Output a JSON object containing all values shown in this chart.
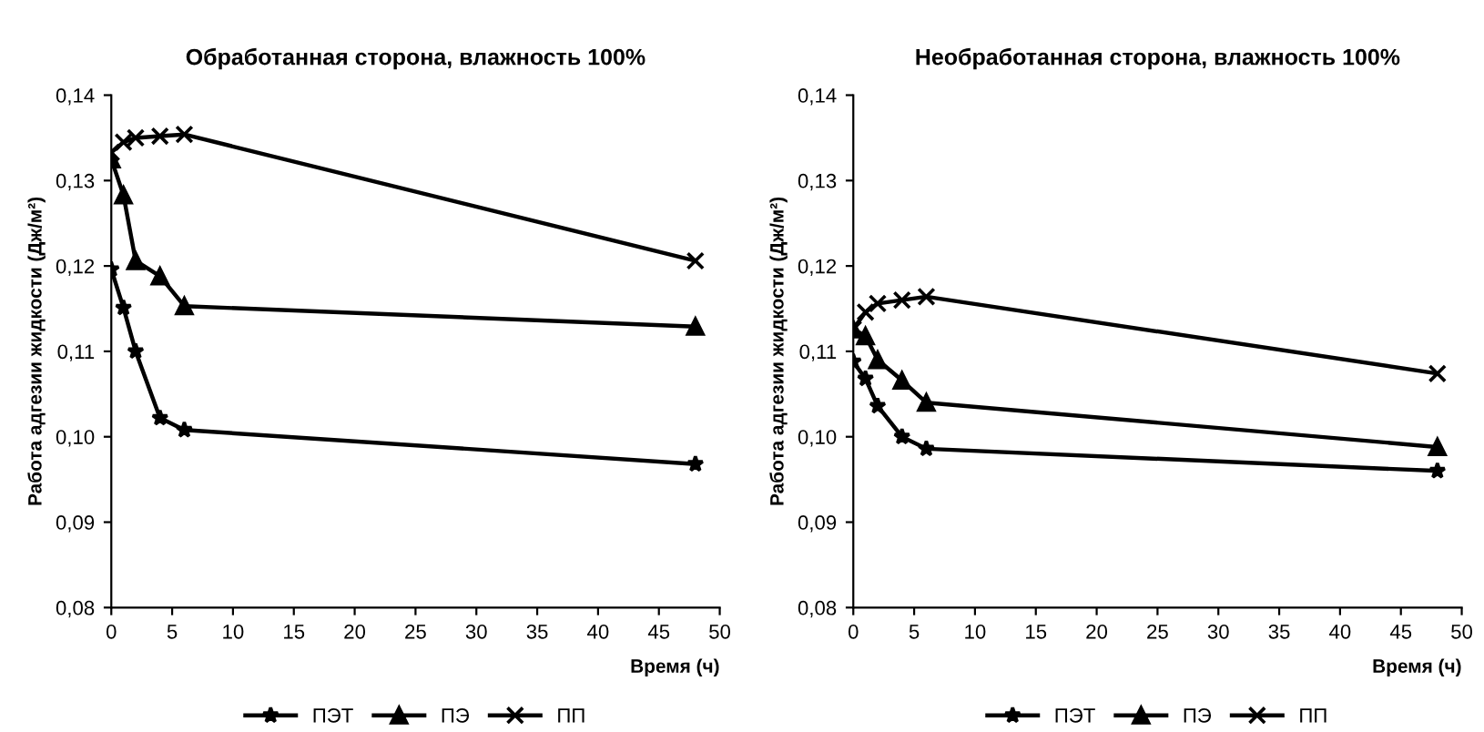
{
  "chart_data": [
    {
      "type": "line",
      "title": "Обработанная сторона, влажность 100%",
      "xlabel": "Время (ч)",
      "ylabel": "Работа адгезии жидкости (Дж/м²)",
      "x": [
        0,
        1,
        2,
        4,
        6,
        48
      ],
      "xlim": [
        0,
        50
      ],
      "xticks": [
        0,
        5,
        10,
        15,
        20,
        25,
        30,
        35,
        40,
        45,
        50
      ],
      "ylim": [
        0.08,
        0.14
      ],
      "yticks": [
        {
          "value": 0.08,
          "label": "0,08"
        },
        {
          "value": 0.09,
          "label": "0,09"
        },
        {
          "value": 0.1,
          "label": "0,10"
        },
        {
          "value": 0.11,
          "label": "0,11"
        },
        {
          "value": 0.12,
          "label": "0,12"
        },
        {
          "value": 0.13,
          "label": "0,13"
        },
        {
          "value": 0.14,
          "label": "0,14"
        }
      ],
      "grid": false,
      "legend": "bottom",
      "line_style": "solid",
      "series": [
        {
          "name": "ПЭТ",
          "color": "#000000",
          "marker": "star",
          "values": [
            0.1196,
            0.1151,
            0.11,
            0.1022,
            0.1008,
            0.0968
          ]
        },
        {
          "name": "ПЭ",
          "color": "#000000",
          "marker": "triangle",
          "values": [
            0.1325,
            0.1283,
            0.1206,
            0.1188,
            0.1153,
            0.1129
          ]
        },
        {
          "name": "ПП",
          "color": "#000000",
          "marker": "cross",
          "values": [
            0.1333,
            0.1345,
            0.135,
            0.1352,
            0.1354,
            0.1206
          ]
        }
      ]
    },
    {
      "type": "line",
      "title": "Необработанная сторона, влажность 100%",
      "xlabel": "Время (ч)",
      "ylabel": "Работа адгезии жидкости (Дж/м²)",
      "x": [
        0,
        1,
        2,
        4,
        6,
        48
      ],
      "xlim": [
        0,
        50
      ],
      "xticks": [
        0,
        5,
        10,
        15,
        20,
        25,
        30,
        35,
        40,
        45,
        50
      ],
      "ylim": [
        0.08,
        0.14
      ],
      "yticks": [
        {
          "value": 0.08,
          "label": "0,08"
        },
        {
          "value": 0.09,
          "label": "0,09"
        },
        {
          "value": 0.1,
          "label": "0,10"
        },
        {
          "value": 0.11,
          "label": "0,11"
        },
        {
          "value": 0.12,
          "label": "0,12"
        },
        {
          "value": 0.13,
          "label": "0,13"
        },
        {
          "value": 0.14,
          "label": "0,14"
        }
      ],
      "grid": false,
      "legend": "bottom",
      "line_style": "solid",
      "series": [
        {
          "name": "ПЭТ",
          "color": "#000000",
          "marker": "star",
          "values": [
            0.1088,
            0.1068,
            0.1036,
            0.1,
            0.0986,
            0.096
          ]
        },
        {
          "name": "ПЭ",
          "color": "#000000",
          "marker": "triangle",
          "values": [
            0.1126,
            0.1118,
            0.109,
            0.1066,
            0.104,
            0.0988
          ]
        },
        {
          "name": "ПП",
          "color": "#000000",
          "marker": "cross",
          "values": [
            0.1126,
            0.1146,
            0.1156,
            0.116,
            0.1164,
            0.1074
          ]
        }
      ]
    }
  ]
}
